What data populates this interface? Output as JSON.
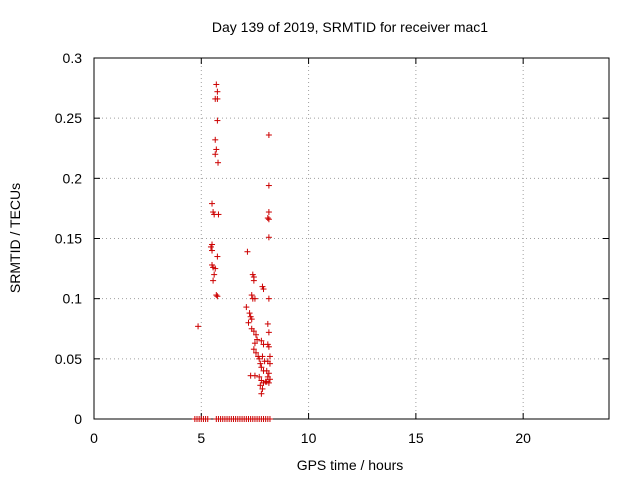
{
  "chart_data": {
    "type": "scatter",
    "title": "Day 139 of 2019, SRMTID for receiver mac1",
    "xlabel": "GPS time / hours",
    "ylabel": "SRMTID / TECUs",
    "xlim": [
      0,
      24
    ],
    "ylim": [
      0,
      0.3
    ],
    "xticks": [
      0,
      5,
      10,
      15,
      20
    ],
    "yticks": [
      0,
      0.05,
      0.1,
      0.15,
      0.2,
      0.25,
      0.3
    ],
    "xtick_labels": [
      "0",
      "5",
      "10",
      "15",
      "20"
    ],
    "ytick_labels": [
      "0",
      "0.05",
      "0.1",
      "0.15",
      "0.2",
      "0.25",
      "0.3"
    ],
    "grid": true,
    "legend": "none",
    "marker": "plus",
    "color": "#cc0000",
    "series": [
      {
        "name": "SRMTID",
        "points": [
          [
            4.85,
            0.077
          ],
          [
            5.5,
            0.179
          ],
          [
            5.55,
            0.172
          ],
          [
            5.6,
            0.17
          ],
          [
            5.8,
            0.17
          ],
          [
            5.5,
            0.145
          ],
          [
            5.45,
            0.143
          ],
          [
            5.5,
            0.14
          ],
          [
            5.75,
            0.135
          ],
          [
            5.5,
            0.128
          ],
          [
            5.55,
            0.126
          ],
          [
            5.65,
            0.125
          ],
          [
            5.6,
            0.12
          ],
          [
            5.55,
            0.115
          ],
          [
            5.7,
            0.103
          ],
          [
            5.75,
            0.102
          ],
          [
            5.7,
            0.278
          ],
          [
            5.75,
            0.272
          ],
          [
            5.65,
            0.266
          ],
          [
            5.75,
            0.266
          ],
          [
            5.75,
            0.248
          ],
          [
            5.65,
            0.232
          ],
          [
            5.7,
            0.224
          ],
          [
            5.65,
            0.22
          ],
          [
            5.78,
            0.213
          ],
          [
            7.15,
            0.139
          ],
          [
            7.1,
            0.093
          ],
          [
            7.25,
            0.088
          ],
          [
            7.3,
            0.085
          ],
          [
            7.35,
            0.083
          ],
          [
            7.2,
            0.08
          ],
          [
            7.4,
            0.12
          ],
          [
            7.45,
            0.118
          ],
          [
            7.45,
            0.115
          ],
          [
            7.35,
            0.103
          ],
          [
            7.4,
            0.1
          ],
          [
            7.5,
            0.1
          ],
          [
            7.85,
            0.11
          ],
          [
            7.9,
            0.108
          ],
          [
            7.35,
            0.075
          ],
          [
            7.45,
            0.073
          ],
          [
            7.55,
            0.07
          ],
          [
            7.6,
            0.066
          ],
          [
            7.5,
            0.063
          ],
          [
            7.8,
            0.065
          ],
          [
            7.9,
            0.062
          ],
          [
            7.45,
            0.058
          ],
          [
            7.55,
            0.055
          ],
          [
            7.65,
            0.052
          ],
          [
            7.7,
            0.05
          ],
          [
            7.85,
            0.052
          ],
          [
            7.95,
            0.048
          ],
          [
            7.75,
            0.046
          ],
          [
            7.8,
            0.043
          ],
          [
            7.9,
            0.04
          ],
          [
            7.3,
            0.036
          ],
          [
            7.5,
            0.036
          ],
          [
            7.7,
            0.035
          ],
          [
            7.8,
            0.032
          ],
          [
            7.9,
            0.03
          ],
          [
            8.0,
            0.031
          ],
          [
            7.75,
            0.028
          ],
          [
            7.85,
            0.025
          ],
          [
            7.8,
            0.021
          ],
          [
            8.15,
            0.236
          ],
          [
            8.15,
            0.194
          ],
          [
            8.15,
            0.172
          ],
          [
            8.1,
            0.167
          ],
          [
            8.15,
            0.166
          ],
          [
            8.15,
            0.151
          ],
          [
            8.15,
            0.1
          ],
          [
            8.1,
            0.079
          ],
          [
            8.15,
            0.072
          ],
          [
            8.1,
            0.062
          ],
          [
            8.15,
            0.06
          ],
          [
            8.2,
            0.052
          ],
          [
            8.1,
            0.048
          ],
          [
            8.2,
            0.046
          ],
          [
            8.05,
            0.04
          ],
          [
            8.15,
            0.038
          ],
          [
            8.1,
            0.035
          ],
          [
            8.2,
            0.033
          ],
          [
            8.05,
            0.031
          ],
          [
            8.15,
            0.03
          ],
          [
            4.7,
            0.0
          ],
          [
            4.8,
            0.0
          ],
          [
            4.9,
            0.0
          ],
          [
            5.0,
            0.0
          ],
          [
            5.1,
            0.0
          ],
          [
            5.2,
            0.0
          ],
          [
            5.3,
            0.0
          ],
          [
            5.7,
            0.0
          ],
          [
            5.8,
            0.0
          ],
          [
            5.9,
            0.0
          ],
          [
            6.0,
            0.0
          ],
          [
            6.1,
            0.0
          ],
          [
            6.2,
            0.0
          ],
          [
            6.3,
            0.0
          ],
          [
            6.4,
            0.0
          ],
          [
            6.5,
            0.0
          ],
          [
            6.6,
            0.0
          ],
          [
            6.7,
            0.0
          ],
          [
            6.8,
            0.0
          ],
          [
            6.9,
            0.0
          ],
          [
            7.0,
            0.0
          ],
          [
            7.1,
            0.0
          ],
          [
            7.2,
            0.0
          ],
          [
            7.3,
            0.0
          ],
          [
            7.4,
            0.0
          ],
          [
            7.5,
            0.0
          ],
          [
            7.6,
            0.0
          ],
          [
            7.7,
            0.0
          ],
          [
            7.8,
            0.0
          ],
          [
            7.9,
            0.0
          ],
          [
            8.0,
            0.0
          ],
          [
            8.1,
            0.0
          ],
          [
            8.2,
            0.0
          ]
        ]
      }
    ]
  }
}
